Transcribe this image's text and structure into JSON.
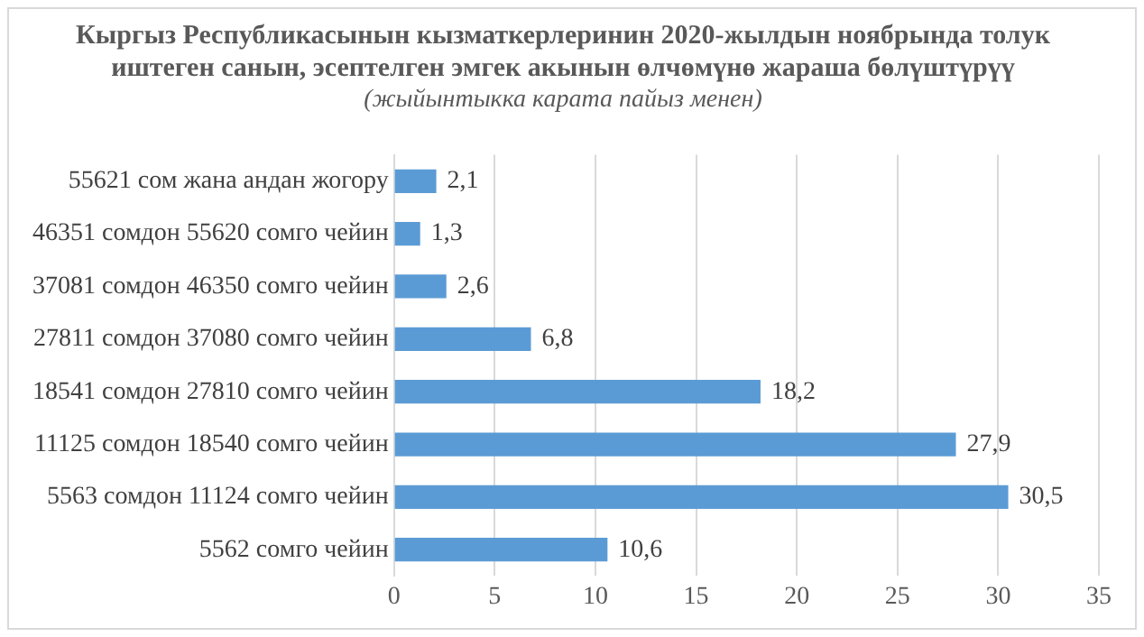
{
  "chart_data": {
    "type": "bar",
    "orientation": "horizontal",
    "title": "Кыргыз Республикасынын кызматкерлеринин 2020-жылдын ноябрында толук\nиштеген санын, эсептелген эмгек акынын өлчөмүнө жараша бөлүштүрүү",
    "subtitle": "(жыйынтыкка карата пайыз менен)",
    "categories": [
      "55621 сом жана андан жогору",
      "46351 сомдон 55620 сомго чейин",
      "37081 сомдон 46350 сомго чейин",
      "27811 сомдон 37080 сомго чейин",
      "18541 сомдон 27810 сомго чейин",
      "11125 сомдон 18540 сомго чейин",
      "5563 сомдон 11124 сомго чейин",
      "5562 сомго чейин"
    ],
    "values": [
      2.1,
      1.3,
      2.6,
      6.8,
      18.2,
      27.9,
      30.5,
      10.6
    ],
    "value_labels": [
      "2,1",
      "1,3",
      "2,6",
      "6,8",
      "18,2",
      "27,9",
      "30,5",
      "10,6"
    ],
    "color": "#5b9bd5",
    "xlim": [
      0,
      35
    ],
    "xticks": [
      0,
      5,
      10,
      15,
      20,
      25,
      30,
      35
    ],
    "grid": "x",
    "legend": false
  }
}
